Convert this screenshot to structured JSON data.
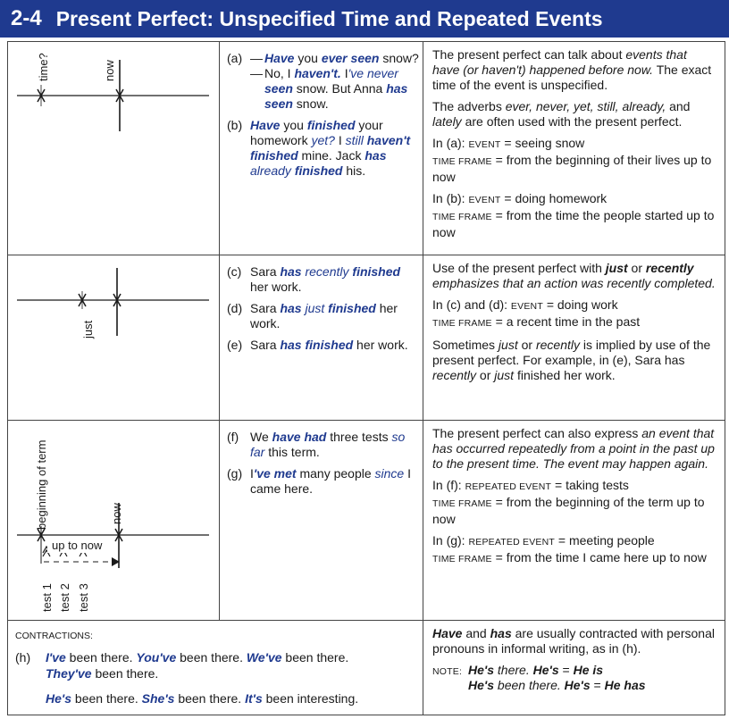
{
  "header": {
    "number": "2-4",
    "title": "Present Perfect:  Unspecified Time and Repeated Events"
  },
  "timeline1": {
    "label_past": "time?",
    "label_now": "now"
  },
  "timeline2": {
    "label_just": "just"
  },
  "timeline3": {
    "label_start": "beginning of term",
    "label_now": "now",
    "label_span": "up to now",
    "tests": [
      "test 1",
      "test 2",
      "test 3"
    ]
  },
  "examples": {
    "a": {
      "label": "(a)",
      "q_pre": "— ",
      "q_v1": "Have",
      "q_t1": " you ",
      "q_v2": "ever",
      "q_t2": " ",
      "q_v3": "seen",
      "q_t3": " snow?",
      "r_pre": "— No, I ",
      "r_v1": "haven't.",
      "r_t1": "  I",
      "r_v2": "'ve never",
      "r_t2": " ",
      "r_v3": "seen",
      "r_t3": " snow.  But Anna ",
      "r_v4": "has seen",
      "r_t4": " snow."
    },
    "b": {
      "label": "(b)",
      "v1": "Have",
      "t1": " you ",
      "v2": "finished",
      "t2": " your homework ",
      "v3": "yet?",
      "t3": "  I ",
      "v4": "still",
      "t4": " ",
      "v5": "haven't finished",
      "t5": " mine. Jack ",
      "v6": "has",
      "t6": " ",
      "v7": "already",
      "t7": " ",
      "v8": "finished",
      "t8": " his."
    },
    "c": {
      "label": "(c)",
      "t1": "Sara ",
      "v1": "has",
      "t2": " ",
      "v2": "recently",
      "t3": " ",
      "v3": "finished",
      "t4": " her work."
    },
    "d": {
      "label": "(d)",
      "t1": "Sara ",
      "v1": "has",
      "t2": " ",
      "v2": "just",
      "t3": " ",
      "v3": "finished",
      "t4": " her work."
    },
    "e": {
      "label": "(e)",
      "t1": "Sara ",
      "v1": "has finished",
      "t2": " her work."
    },
    "f": {
      "label": "(f)",
      "t1": "We ",
      "v1": "have had",
      "t2": " three tests ",
      "v2": "so far",
      "t3": " this term."
    },
    "g": {
      "label": "(g)",
      "t1": "I",
      "v1": "'ve met",
      "t2": " many people ",
      "v2": "since",
      "t3": " I came here."
    }
  },
  "explain1": {
    "p1_a": "The present perfect can talk about ",
    "p1_em": "events that have (or haven't) happened before now.",
    "p1_b": "  The exact time of the event is unspecified.",
    "p2_a": "The adverbs ",
    "p2_em": "ever, never, yet, still, already,",
    "p2_b": " and ",
    "p2_em2": "lately",
    "p2_c": " are often used with the present perfect.",
    "a_pre": "In (a):  ",
    "a_event": "EVENT",
    "a_event_v": " = seeing snow",
    "a_tf": "TIME FRAME",
    "a_tf_v": " = from the beginning of their lives up to now",
    "b_pre": "In (b):  ",
    "b_event": "EVENT",
    "b_event_v": " = doing homework",
    "b_tf": "TIME FRAME",
    "b_tf_v": " = from the time the people started up to now"
  },
  "explain2": {
    "p1_a": "Use of the present perfect with ",
    "p1_just": "just",
    "p1_b": " or ",
    "p1_recently": "recently",
    "p1_c": " emphasizes that an action was recently completed.",
    "cd_pre": "In (c) and (d):  ",
    "cd_event": "EVENT",
    "cd_event_v": " = doing work",
    "cd_tf": "TIME FRAME",
    "cd_tf_v": " = a recent time in the past",
    "p3_a": "Sometimes ",
    "p3_just": "just",
    "p3_b": " or ",
    "p3_recently": "recently",
    "p3_c": " is implied by use of the present perfect.  For example, in (e), Sara has ",
    "p3_recently2": "recently",
    "p3_d": " or ",
    "p3_just2": "just",
    "p3_e": " finished her work."
  },
  "explain3": {
    "p1_a": "The present perfect can also express ",
    "p1_em": "an event that has occurred repeatedly from a point in the past up to the present time.  The event may happen again.",
    "f_pre": "In (f):  ",
    "f_event": "REPEATED EVENT",
    "f_event_v": " = taking tests",
    "f_tf": "TIME FRAME",
    "f_tf_v": " = from the beginning of the term up to now",
    "g_pre": "In (g):  ",
    "g_event": "REPEATED EVENT",
    "g_event_v": " = meeting people",
    "g_tf": "TIME FRAME",
    "g_tf_v": " = from the time I came here up to now"
  },
  "contractions": {
    "heading": "CONTRACTIONS:",
    "label": "(h)",
    "c1": "I've",
    "t1": " been there.  ",
    "c2": "You've",
    "t2": " been there.  ",
    "c3": "We've",
    "t3": " been there.",
    "c4": "They've",
    "t4": " been there.",
    "c5": "He's",
    "t5": " been there.  ",
    "c6": "She's",
    "t6": " been there.  ",
    "c7": "It's",
    "t7": " been interesting."
  },
  "contraction_note": {
    "p_have": "Have",
    "p_a": " and ",
    "p_has": "has",
    "p_b": " are usually contracted with personal pronouns in informal writing, as in (h).",
    "note_label": "NOTE:",
    "n1_a": "He's",
    "n1_b": " there.  ",
    "n1_c": "He's",
    "n1_d": " = ",
    "n1_e": "He is",
    "n2_a": "He's",
    "n2_b": " been there.  ",
    "n2_c": "He's",
    "n2_d": " = ",
    "n2_e": "He has"
  }
}
